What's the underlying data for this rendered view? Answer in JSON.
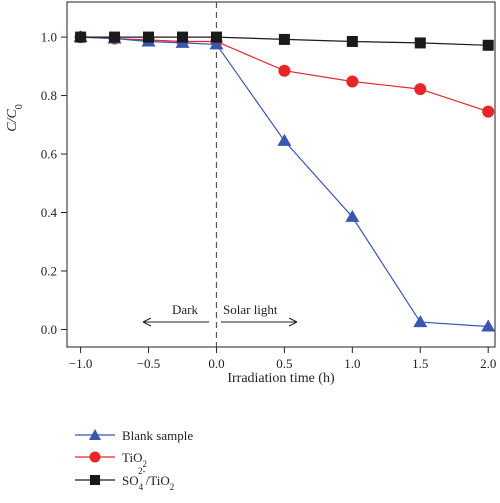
{
  "chart_data": {
    "type": "line",
    "xlabel": "Irradiation time (h)",
    "ylabel": {
      "main": "C/C",
      "sub": "0"
    },
    "xlim": [
      -1.1,
      2.05
    ],
    "ylim": [
      -0.06,
      1.12
    ],
    "xticks": [
      -1.0,
      -0.5,
      0.0,
      0.5,
      1.0,
      1.5,
      2.0
    ],
    "xtick_labels": [
      "−1.0",
      "−0.5",
      "0.0",
      "0.5",
      "1.0",
      "1.5",
      "2.0"
    ],
    "yticks": [
      0.0,
      0.2,
      0.4,
      0.6,
      0.8,
      1.0
    ],
    "ytick_labels": [
      "0.0",
      "0.2",
      "0.4",
      "0.6",
      "0.8",
      "1.0"
    ],
    "divider_x": 0.0,
    "annotations": {
      "dark": "Dark",
      "solar": "Solar light"
    },
    "grid": false,
    "legend_position": "bottom-left, below plot",
    "series": [
      {
        "key": "blank",
        "name": "Blank sample",
        "marker": "triangle",
        "color": "#3a56b0",
        "x": [
          -1.0,
          -0.75,
          -0.5,
          -0.25,
          0.0,
          0.5,
          1.0,
          1.5,
          2.0
        ],
        "y": [
          1.0,
          0.995,
          0.985,
          0.98,
          0.975,
          0.645,
          0.385,
          0.025,
          0.01
        ]
      },
      {
        "key": "tio2",
        "name": "TiO2",
        "name_parts": {
          "main": "TiO",
          "sub": "2"
        },
        "marker": "circle",
        "color": "#e8262a",
        "x": [
          -1.0,
          -0.75,
          -0.5,
          -0.25,
          0.0,
          0.5,
          1.0,
          1.5,
          2.0
        ],
        "y": [
          1.0,
          0.995,
          0.99,
          0.985,
          0.985,
          0.885,
          0.848,
          0.822,
          0.745
        ]
      },
      {
        "key": "so4",
        "name": "SO42-/TiO2",
        "name_parts": {
          "a": "SO",
          "sub1": "4",
          "sup": "2-",
          "b": "/TiO",
          "sub2": "2"
        },
        "marker": "square",
        "color": "#1a1a1a",
        "x": [
          -1.0,
          -0.75,
          -0.5,
          -0.25,
          0.0,
          0.5,
          1.0,
          1.5,
          2.0
        ],
        "y": [
          1.0,
          1.0,
          1.0,
          1.0,
          1.0,
          0.992,
          0.985,
          0.98,
          0.972
        ]
      }
    ]
  }
}
